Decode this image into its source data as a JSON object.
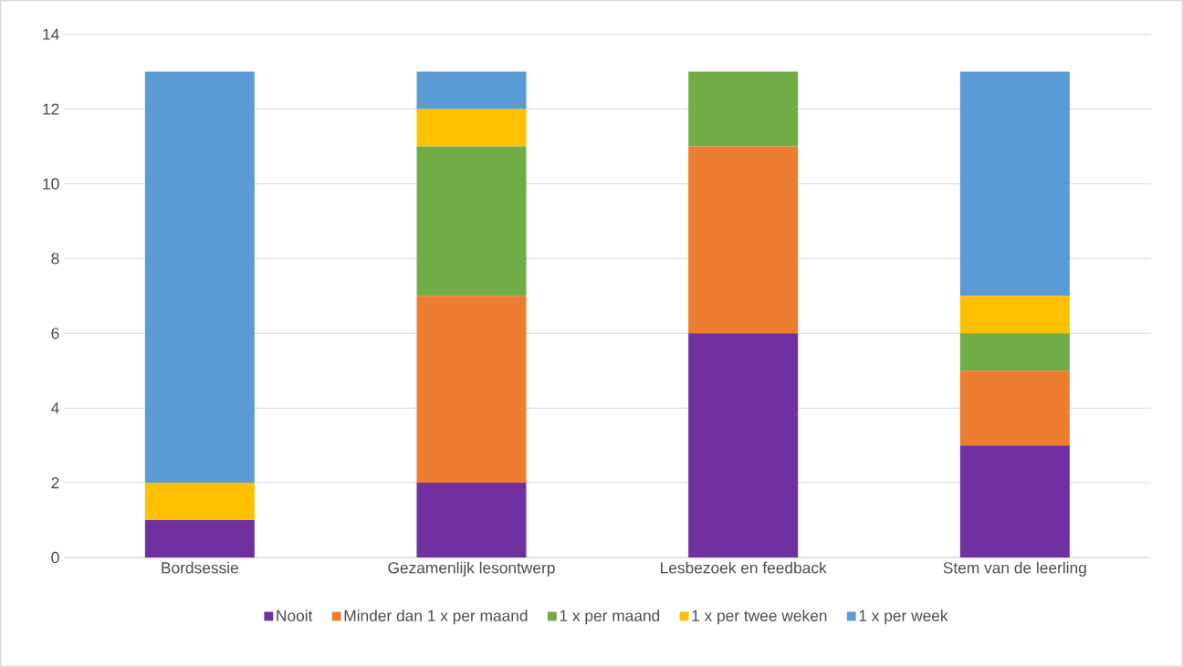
{
  "chart_data": {
    "type": "bar",
    "stacked": true,
    "categories": [
      "Bordsessie",
      "Gezamenlijk lesontwerp",
      "Lesbezoek en feedback",
      "Stem van de leerling"
    ],
    "series": [
      {
        "name": "Nooit",
        "color": "#7030a0",
        "values": [
          1,
          2,
          6,
          3
        ]
      },
      {
        "name": "Minder dan 1 x per maand",
        "color": "#ed7d31",
        "values": [
          0,
          5,
          5,
          2
        ]
      },
      {
        "name": "1 x per maand",
        "color": "#70ad47",
        "values": [
          0,
          4,
          2,
          1
        ]
      },
      {
        "name": "1 x per twee weken",
        "color": "#ffc000",
        "values": [
          1,
          1,
          0,
          1
        ]
      },
      {
        "name": "1 x per week",
        "color": "#5b9bd5",
        "values": [
          11,
          1,
          0,
          6
        ]
      }
    ],
    "ylim": [
      0,
      14
    ],
    "yticks": [
      0,
      2,
      4,
      6,
      8,
      10,
      12,
      14
    ],
    "grid": "y",
    "legend": "bottom"
  }
}
